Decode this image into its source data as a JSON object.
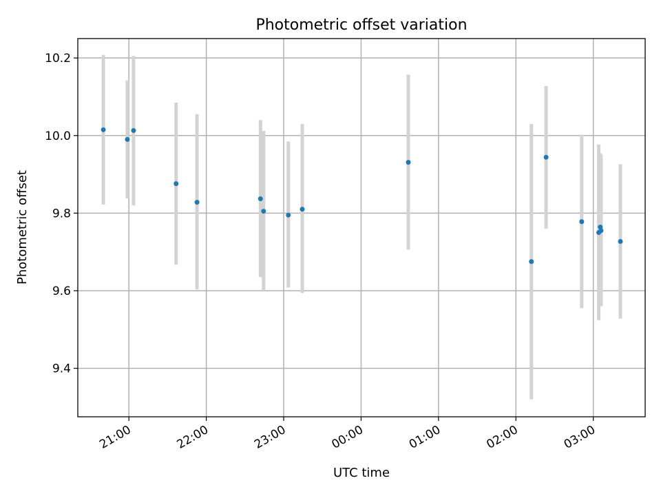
{
  "chart_data": {
    "type": "scatter",
    "title": "Photometric offset variation",
    "xlabel": "UTC time",
    "ylabel": "Photometric offset",
    "x_ticks": [
      {
        "value": 21.0,
        "label": "21:00"
      },
      {
        "value": 22.0,
        "label": "22:00"
      },
      {
        "value": 23.0,
        "label": "23:00"
      },
      {
        "value": 24.0,
        "label": "00:00"
      },
      {
        "value": 25.0,
        "label": "01:00"
      },
      {
        "value": 26.0,
        "label": "02:00"
      },
      {
        "value": 27.0,
        "label": "03:00"
      }
    ],
    "y_ticks": [
      {
        "value": 9.4,
        "label": "9.4"
      },
      {
        "value": 9.6,
        "label": "9.6"
      },
      {
        "value": 9.8,
        "label": "9.8"
      },
      {
        "value": 10.0,
        "label": "10.0"
      },
      {
        "value": 10.2,
        "label": "10.2"
      }
    ],
    "xlim": [
      20.34,
      27.67
    ],
    "ylim": [
      9.275,
      10.25
    ],
    "grid": true,
    "point_color": "#1f77b4",
    "errorbar_color": "#d3d3d3",
    "points": [
      {
        "x": 20.67,
        "y": 10.015,
        "err_low": 9.822,
        "err_high": 10.208
      },
      {
        "x": 20.98,
        "y": 9.99,
        "err_low": 9.838,
        "err_high": 10.142
      },
      {
        "x": 21.06,
        "y": 10.013,
        "err_low": 9.82,
        "err_high": 10.205
      },
      {
        "x": 21.61,
        "y": 9.876,
        "err_low": 9.667,
        "err_high": 10.085
      },
      {
        "x": 21.88,
        "y": 9.828,
        "err_low": 9.603,
        "err_high": 10.055
      },
      {
        "x": 22.7,
        "y": 9.837,
        "err_low": 9.635,
        "err_high": 10.04
      },
      {
        "x": 22.74,
        "y": 9.805,
        "err_low": 9.6,
        "err_high": 10.012
      },
      {
        "x": 23.06,
        "y": 9.795,
        "err_low": 9.608,
        "err_high": 9.985
      },
      {
        "x": 23.24,
        "y": 9.81,
        "err_low": 9.594,
        "err_high": 10.03
      },
      {
        "x": 24.61,
        "y": 9.931,
        "err_low": 9.706,
        "err_high": 10.157
      },
      {
        "x": 26.2,
        "y": 9.675,
        "err_low": 9.32,
        "err_high": 10.03
      },
      {
        "x": 26.39,
        "y": 9.944,
        "err_low": 9.76,
        "err_high": 10.128
      },
      {
        "x": 26.85,
        "y": 9.778,
        "err_low": 9.555,
        "err_high": 10.002
      },
      {
        "x": 27.07,
        "y": 9.75,
        "err_low": 9.524,
        "err_high": 9.977
      },
      {
        "x": 27.09,
        "y": 9.764,
        "err_low": 9.56,
        "err_high": 9.954
      },
      {
        "x": 27.1,
        "y": 9.755,
        "err_low": 9.56,
        "err_high": 9.95
      },
      {
        "x": 27.35,
        "y": 9.727,
        "err_low": 9.528,
        "err_high": 9.926
      }
    ]
  }
}
